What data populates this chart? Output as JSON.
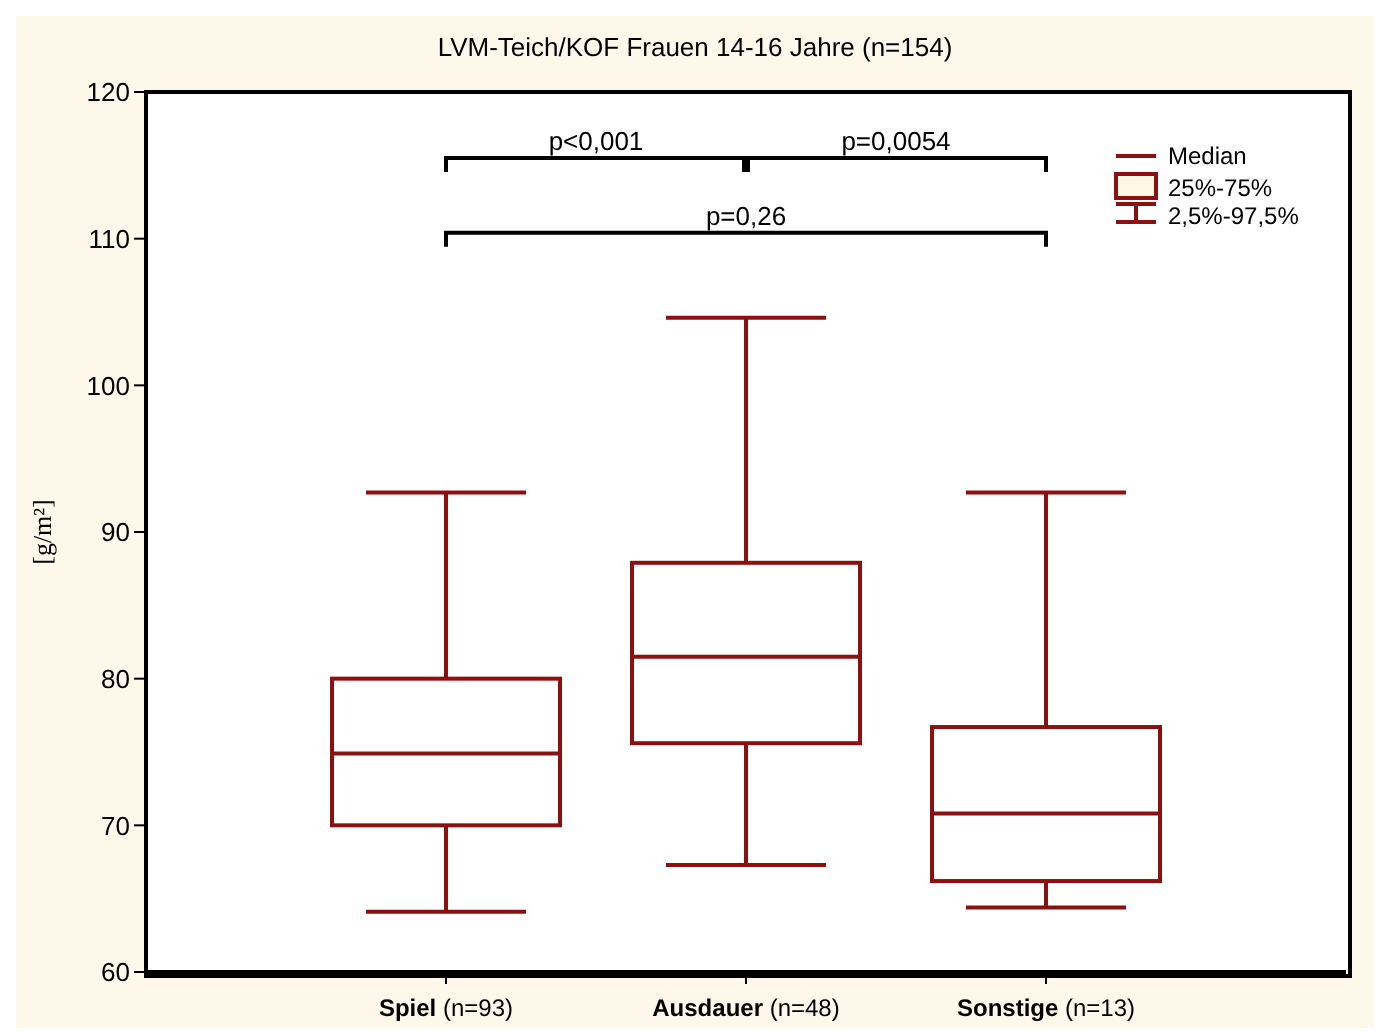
{
  "chart_data": {
    "type": "box",
    "title": "LVM-Teich/KOF Frauen 14-16 Jahre (n=154)",
    "ylabel": "[g/m²]",
    "categories": [
      "Spiel (n=93)",
      "Ausdauer (n=48)",
      "Sonstige (n=13)"
    ],
    "color": "#8b1010",
    "boxes": [
      {
        "low": 64.1,
        "q1": 70,
        "median": 74.9,
        "q3": 80,
        "high": 92.7
      },
      {
        "low": 67.3,
        "q1": 75.6,
        "median": 81.5,
        "q3": 87.9,
        "high": 104.6
      },
      {
        "low": 64.4,
        "q1": 66.2,
        "median": 70.8,
        "q3": 76.7,
        "high": 92.7
      }
    ],
    "ylim": [
      60,
      120
    ],
    "yticks": [
      60,
      70,
      80,
      90,
      100,
      110,
      120
    ],
    "annotations": [
      "p<0,001",
      "p=0,0054",
      "p=0,26",
      "Median",
      "25%-75%",
      "2,5%-97,5%"
    ]
  }
}
